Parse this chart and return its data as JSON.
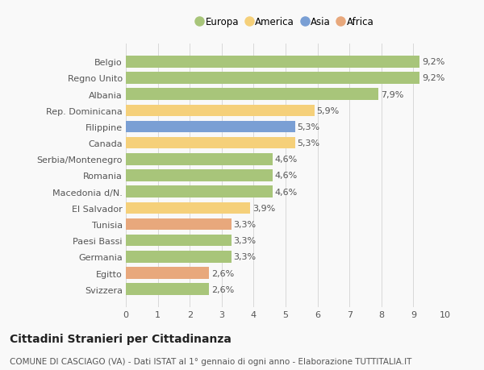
{
  "categories": [
    "Svizzera",
    "Egitto",
    "Germania",
    "Paesi Bassi",
    "Tunisia",
    "El Salvador",
    "Macedonia d/N.",
    "Romania",
    "Serbia/Montenegro",
    "Canada",
    "Filippine",
    "Rep. Dominicana",
    "Albania",
    "Regno Unito",
    "Belgio"
  ],
  "values": [
    2.6,
    2.6,
    3.3,
    3.3,
    3.3,
    3.9,
    4.6,
    4.6,
    4.6,
    5.3,
    5.3,
    5.9,
    7.9,
    9.2,
    9.2
  ],
  "colors": [
    "#a8c57a",
    "#e8a87c",
    "#a8c57a",
    "#a8c57a",
    "#e8a87c",
    "#f5d07a",
    "#a8c57a",
    "#a8c57a",
    "#a8c57a",
    "#f5d07a",
    "#7a9fd4",
    "#f5d07a",
    "#a8c57a",
    "#a8c57a",
    "#a8c57a"
  ],
  "labels": [
    "2,6%",
    "2,6%",
    "3,3%",
    "3,3%",
    "3,3%",
    "3,9%",
    "4,6%",
    "4,6%",
    "4,6%",
    "5,3%",
    "5,3%",
    "5,9%",
    "7,9%",
    "9,2%",
    "9,2%"
  ],
  "legend": {
    "Europa": "#a8c57a",
    "America": "#f5d07a",
    "Asia": "#7a9fd4",
    "Africa": "#e8a87c"
  },
  "title": "Cittadini Stranieri per Cittadinanza",
  "subtitle": "COMUNE DI CASCIAGO (VA) - Dati ISTAT al 1° gennaio di ogni anno - Elaborazione TUTTITALIA.IT",
  "xlim": [
    0,
    10
  ],
  "xticks": [
    0,
    1,
    2,
    3,
    4,
    5,
    6,
    7,
    8,
    9,
    10
  ],
  "background_color": "#f9f9f9",
  "grid_color": "#d8d8d8",
  "bar_height": 0.72,
  "title_fontsize": 10,
  "subtitle_fontsize": 7.5,
  "tick_fontsize": 8,
  "label_fontsize": 8
}
